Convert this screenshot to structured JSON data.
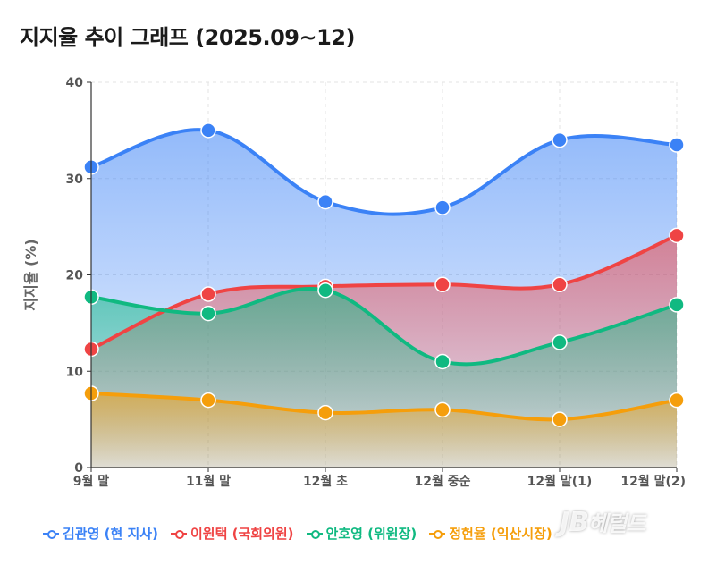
{
  "title": "지지율 추이 그래프 (2025.09~12)",
  "watermark": "JB헤럴드",
  "chart_data": {
    "type": "area",
    "title": "지지율 추이 그래프 (2025.09~12)",
    "xlabel": "",
    "ylabel": "지지율 (%)",
    "ylim": [
      0,
      40
    ],
    "yticks": [
      0,
      10,
      20,
      30,
      40
    ],
    "grid": true,
    "legend_position": "bottom",
    "categories": [
      "9월 말",
      "11월 말",
      "12월 초",
      "12월 중순",
      "12월 말(1)",
      "12월 말(2)"
    ],
    "series": [
      {
        "name": "김관영 (현 지사)",
        "color": "#3b82f6",
        "values": [
          31.2,
          35.0,
          27.6,
          27.0,
          34.0,
          33.5
        ]
      },
      {
        "name": "이원택 (국회의원)",
        "color": "#ef4444",
        "values": [
          12.3,
          18.0,
          18.8,
          19.0,
          19.0,
          24.1
        ]
      },
      {
        "name": "안호영 (위원장)",
        "color": "#10b981",
        "values": [
          17.7,
          16.0,
          18.4,
          11.0,
          13.0,
          16.9
        ]
      },
      {
        "name": "정헌율 (익산시장)",
        "color": "#f59e0b",
        "values": [
          7.7,
          7.0,
          5.7,
          6.0,
          5.0,
          7.0
        ]
      }
    ]
  }
}
